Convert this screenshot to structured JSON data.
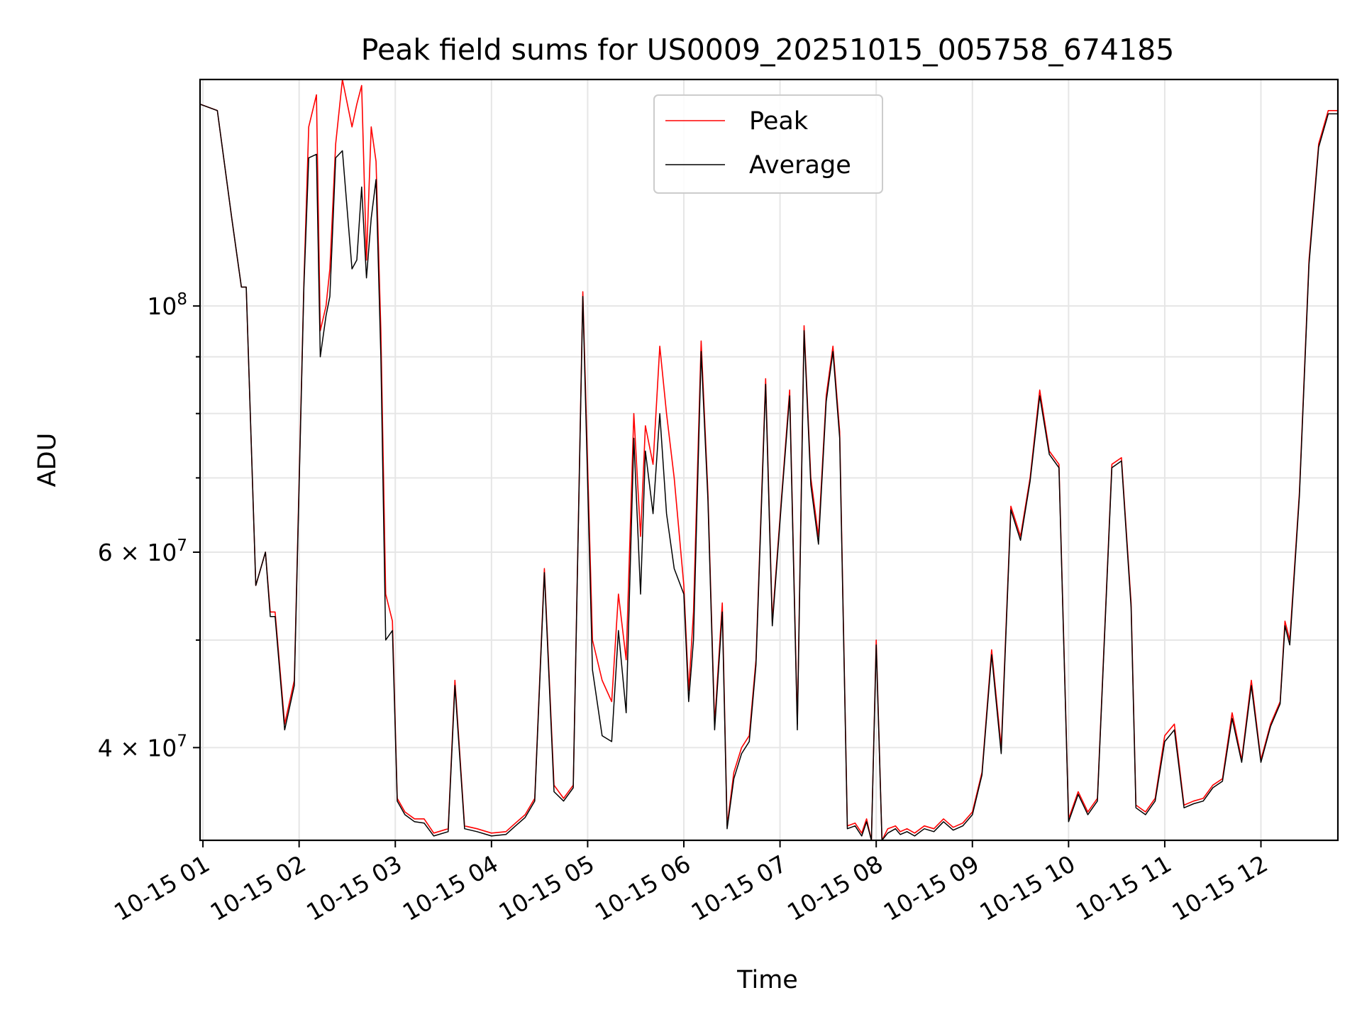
{
  "chart_data": {
    "type": "line",
    "title": "Peak field sums for US0009_20251015_005758_674185",
    "xlabel": "Time",
    "ylabel": "ADU",
    "yscale": "log",
    "ylim": [
      33000000,
      160000000
    ],
    "xlim_hours": [
      0.97,
      12.8
    ],
    "x_ticks": [
      {
        "value": 1,
        "label": "10-15 01"
      },
      {
        "value": 2,
        "label": "10-15 02"
      },
      {
        "value": 3,
        "label": "10-15 03"
      },
      {
        "value": 4,
        "label": "10-15 04"
      },
      {
        "value": 5,
        "label": "10-15 05"
      },
      {
        "value": 6,
        "label": "10-15 06"
      },
      {
        "value": 7,
        "label": "10-15 07"
      },
      {
        "value": 8,
        "label": "10-15 08"
      },
      {
        "value": 9,
        "label": "10-15 09"
      },
      {
        "value": 10,
        "label": "10-15 10"
      },
      {
        "value": 11,
        "label": "10-15 11"
      },
      {
        "value": 12,
        "label": "10-15 12"
      }
    ],
    "y_ticks_major": [
      {
        "value": 100000000,
        "base": "10",
        "exp": "8",
        "label": "10^8"
      },
      {
        "value": 60000000,
        "base": "6 × 10",
        "exp": "7",
        "label": "6 × 10^7"
      },
      {
        "value": 40000000,
        "base": "4 × 10",
        "exp": "7",
        "label": "4 × 10^7"
      }
    ],
    "y_ticks_minor": [
      50000000,
      70000000,
      80000000,
      90000000
    ],
    "legend_position": "top-center",
    "series": [
      {
        "name": "Peak",
        "color": "#ff0000",
        "x": [
          0.97,
          1.15,
          1.3,
          1.4,
          1.45,
          1.55,
          1.65,
          1.7,
          1.75,
          1.85,
          1.95,
          2.05,
          2.1,
          2.18,
          2.22,
          2.28,
          2.32,
          2.38,
          2.45,
          2.55,
          2.6,
          2.65,
          2.7,
          2.75,
          2.8,
          2.85,
          2.9,
          2.97,
          3.02,
          3.1,
          3.2,
          3.3,
          3.4,
          3.55,
          3.62,
          3.72,
          3.85,
          4.0,
          4.15,
          4.25,
          4.35,
          4.45,
          4.55,
          4.65,
          4.75,
          4.85,
          4.95,
          5.05,
          5.15,
          5.25,
          5.32,
          5.4,
          5.48,
          5.55,
          5.6,
          5.68,
          5.75,
          5.82,
          5.9,
          6.0,
          6.05,
          6.1,
          6.18,
          6.25,
          6.32,
          6.4,
          6.45,
          6.52,
          6.6,
          6.68,
          6.75,
          6.85,
          6.92,
          7.02,
          7.1,
          7.18,
          7.25,
          7.32,
          7.4,
          7.48,
          7.55,
          7.62,
          7.7,
          7.78,
          7.85,
          7.9,
          7.95,
          8.0,
          8.06,
          8.12,
          8.2,
          8.25,
          8.32,
          8.4,
          8.5,
          8.6,
          8.7,
          8.8,
          8.9,
          9.0,
          9.1,
          9.2,
          9.3,
          9.4,
          9.5,
          9.6,
          9.7,
          9.8,
          9.9,
          10.0,
          10.1,
          10.2,
          10.3,
          10.45,
          10.55,
          10.65,
          10.7,
          10.8,
          10.9,
          11.0,
          11.1,
          11.2,
          11.3,
          11.4,
          11.5,
          11.6,
          11.7,
          11.8,
          11.9,
          12.0,
          12.1,
          12.2,
          12.25,
          12.3,
          12.4,
          12.5,
          12.6,
          12.7,
          12.8
        ],
        "values": [
          152000000,
          150000000,
          120000000,
          104000000,
          104000000,
          56000000,
          60000000,
          53000000,
          53000000,
          42000000,
          46000000,
          105000000,
          145000000,
          155000000,
          95000000,
          100000000,
          108000000,
          140000000,
          160000000,
          145000000,
          152000000,
          158000000,
          110000000,
          145000000,
          135000000,
          95000000,
          55000000,
          52000000,
          36000000,
          35000000,
          34500000,
          34500000,
          33500000,
          33800000,
          46000000,
          34000000,
          33800000,
          33500000,
          33600000,
          34200000,
          34800000,
          36000000,
          58000000,
          37000000,
          36000000,
          37000000,
          103000000,
          50000000,
          46000000,
          44000000,
          55000000,
          48000000,
          80000000,
          62000000,
          78000000,
          72000000,
          92000000,
          80000000,
          70000000,
          56000000,
          45000000,
          53000000,
          93000000,
          68000000,
          42000000,
          54000000,
          34000000,
          38000000,
          40000000,
          41000000,
          48000000,
          86000000,
          52000000,
          68000000,
          84000000,
          42000000,
          96000000,
          70000000,
          62000000,
          83000000,
          92000000,
          77000000,
          34000000,
          34200000,
          33500000,
          34500000,
          33000000,
          50000000,
          33000000,
          33800000,
          34000000,
          33600000,
          33800000,
          33500000,
          34000000,
          33800000,
          34500000,
          33900000,
          34200000,
          35000000,
          38000000,
          49000000,
          40000000,
          66000000,
          62000000,
          70000000,
          84000000,
          74000000,
          72000000,
          34500000,
          36500000,
          35000000,
          36000000,
          72000000,
          73000000,
          54000000,
          35500000,
          35000000,
          36000000,
          41000000,
          42000000,
          35500000,
          35800000,
          36000000,
          37000000,
          37500000,
          43000000,
          39000000,
          46000000,
          39000000,
          42000000,
          44000000,
          52000000,
          50000000,
          68000000,
          110000000,
          140000000,
          150000000,
          150000000
        ]
      },
      {
        "name": "Average",
        "color": "#000000",
        "x": [
          0.97,
          1.15,
          1.3,
          1.4,
          1.45,
          1.55,
          1.65,
          1.7,
          1.75,
          1.85,
          1.95,
          2.05,
          2.1,
          2.18,
          2.22,
          2.28,
          2.32,
          2.38,
          2.45,
          2.55,
          2.6,
          2.65,
          2.7,
          2.75,
          2.8,
          2.85,
          2.9,
          2.97,
          3.02,
          3.1,
          3.2,
          3.3,
          3.4,
          3.55,
          3.62,
          3.72,
          3.85,
          4.0,
          4.15,
          4.25,
          4.35,
          4.45,
          4.55,
          4.65,
          4.75,
          4.85,
          4.95,
          5.05,
          5.15,
          5.25,
          5.32,
          5.4,
          5.48,
          5.55,
          5.6,
          5.68,
          5.75,
          5.82,
          5.9,
          6.0,
          6.05,
          6.1,
          6.18,
          6.25,
          6.32,
          6.4,
          6.45,
          6.52,
          6.6,
          6.68,
          6.75,
          6.85,
          6.92,
          7.02,
          7.1,
          7.18,
          7.25,
          7.32,
          7.4,
          7.48,
          7.55,
          7.62,
          7.7,
          7.78,
          7.85,
          7.9,
          7.95,
          8.0,
          8.06,
          8.12,
          8.2,
          8.25,
          8.32,
          8.4,
          8.5,
          8.6,
          8.7,
          8.8,
          8.9,
          9.0,
          9.1,
          9.2,
          9.3,
          9.4,
          9.5,
          9.6,
          9.7,
          9.8,
          9.9,
          10.0,
          10.1,
          10.2,
          10.3,
          10.45,
          10.55,
          10.65,
          10.7,
          10.8,
          10.9,
          11.0,
          11.1,
          11.2,
          11.3,
          11.4,
          11.5,
          11.6,
          11.7,
          11.8,
          11.9,
          12.0,
          12.1,
          12.2,
          12.25,
          12.3,
          12.4,
          12.5,
          12.6,
          12.7,
          12.8
        ],
        "values": [
          152000000,
          150000000,
          120000000,
          104000000,
          104000000,
          56000000,
          60000000,
          52500000,
          52500000,
          41500000,
          45500000,
          104000000,
          136000000,
          137000000,
          90000000,
          98000000,
          102000000,
          136000000,
          138000000,
          108000000,
          110000000,
          128000000,
          106000000,
          120000000,
          130000000,
          90000000,
          50000000,
          51000000,
          35800000,
          34800000,
          34300000,
          34200000,
          33300000,
          33600000,
          45500000,
          33800000,
          33600000,
          33300000,
          33400000,
          34000000,
          34600000,
          35800000,
          57500000,
          36500000,
          35800000,
          36800000,
          102000000,
          47000000,
          41000000,
          40500000,
          51000000,
          43000000,
          76000000,
          55000000,
          74000000,
          65000000,
          80000000,
          65000000,
          58000000,
          55000000,
          44000000,
          50000000,
          91000000,
          67000000,
          41500000,
          53000000,
          33800000,
          37500000,
          39500000,
          40500000,
          47500000,
          85000000,
          51500000,
          67500000,
          83000000,
          41500000,
          95000000,
          69000000,
          61000000,
          82000000,
          91000000,
          76000000,
          33800000,
          34000000,
          33300000,
          34300000,
          32800000,
          49500000,
          32900000,
          33500000,
          33800000,
          33400000,
          33600000,
          33300000,
          33800000,
          33600000,
          34300000,
          33700000,
          34000000,
          34800000,
          37800000,
          48500000,
          39500000,
          65500000,
          61500000,
          69500000,
          83000000,
          73500000,
          71500000,
          34300000,
          36300000,
          34800000,
          35800000,
          71500000,
          72500000,
          53500000,
          35300000,
          34800000,
          35800000,
          40500000,
          41500000,
          35300000,
          35600000,
          35800000,
          36800000,
          37300000,
          42500000,
          38800000,
          45500000,
          38800000,
          41800000,
          43800000,
          51500000,
          49500000,
          67500000,
          109000000,
          139000000,
          149000000,
          149000000
        ]
      }
    ]
  }
}
